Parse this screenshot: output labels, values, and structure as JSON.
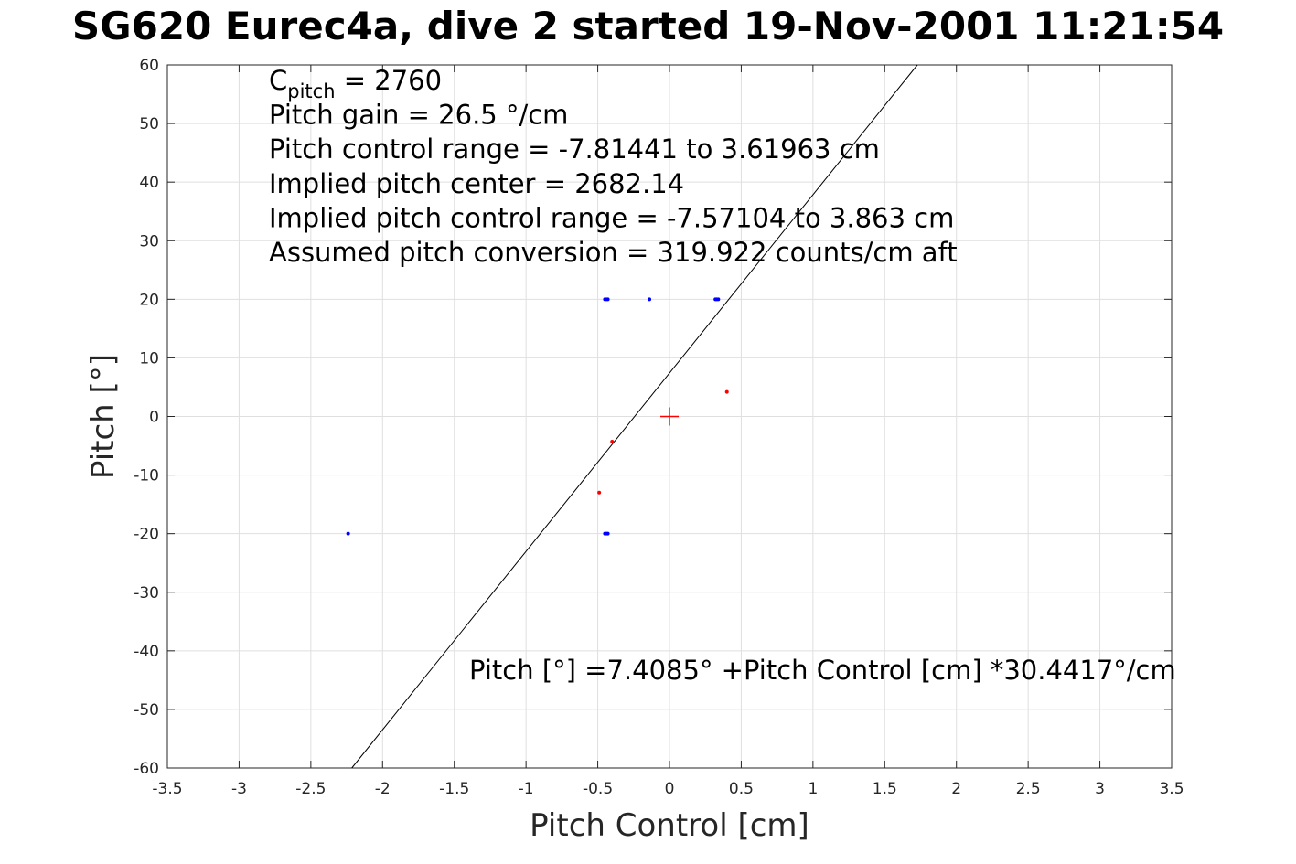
{
  "chart_data": {
    "type": "scatter",
    "title": "SG620 Eurec4a, dive 2 started 19-Nov-2001 11:21:54",
    "xlabel": "Pitch Control [cm]",
    "ylabel": "Pitch [°]",
    "xlim": [
      -3.5,
      3.5
    ],
    "ylim": [
      -60,
      60
    ],
    "xticks": [
      -3.5,
      -3,
      -2.5,
      -2,
      -1.5,
      -1,
      -0.5,
      0,
      0.5,
      1,
      1.5,
      2,
      2.5,
      3,
      3.5
    ],
    "yticks": [
      -60,
      -50,
      -40,
      -30,
      -20,
      -10,
      0,
      10,
      20,
      30,
      40,
      50,
      60
    ],
    "grid": true,
    "annotations": [
      {
        "main": "C",
        "sub": "pitch",
        "rest": " = 2760"
      },
      {
        "text": "Pitch gain = 26.5 °/cm"
      },
      {
        "text": "Pitch control range = -7.81441 to 3.61963 cm"
      },
      {
        "text": "Implied pitch center = 2682.14"
      },
      {
        "text": "Implied pitch control range = -7.57104 to 3.863 cm"
      },
      {
        "text": "Assumed pitch conversion = 319.922 counts/cm aft"
      }
    ],
    "fit_label": "Pitch [°] =7.4085° +Pitch Control [cm] *30.4417°/cm",
    "fit": {
      "intercept": 7.4085,
      "slope": 30.4417
    },
    "series": [
      {
        "color": "#0000ff",
        "points": [
          [
            -0.43,
            20
          ],
          [
            -0.44,
            20
          ],
          [
            -0.45,
            20
          ],
          [
            -0.14,
            20
          ],
          [
            0.32,
            20
          ],
          [
            0.33,
            20
          ],
          [
            0.34,
            20
          ],
          [
            -2.24,
            -20
          ],
          [
            -0.43,
            -20
          ],
          [
            -0.44,
            -20
          ],
          [
            -0.45,
            -20
          ]
        ]
      },
      {
        "color": "#ff0000",
        "points": [
          [
            0.4,
            4.2
          ],
          [
            -0.4,
            -4.3
          ],
          [
            -0.49,
            -13
          ]
        ]
      }
    ],
    "center_marker": {
      "x": 0,
      "y": 0,
      "color": "#ff0000"
    },
    "fit_color": "#000000"
  }
}
